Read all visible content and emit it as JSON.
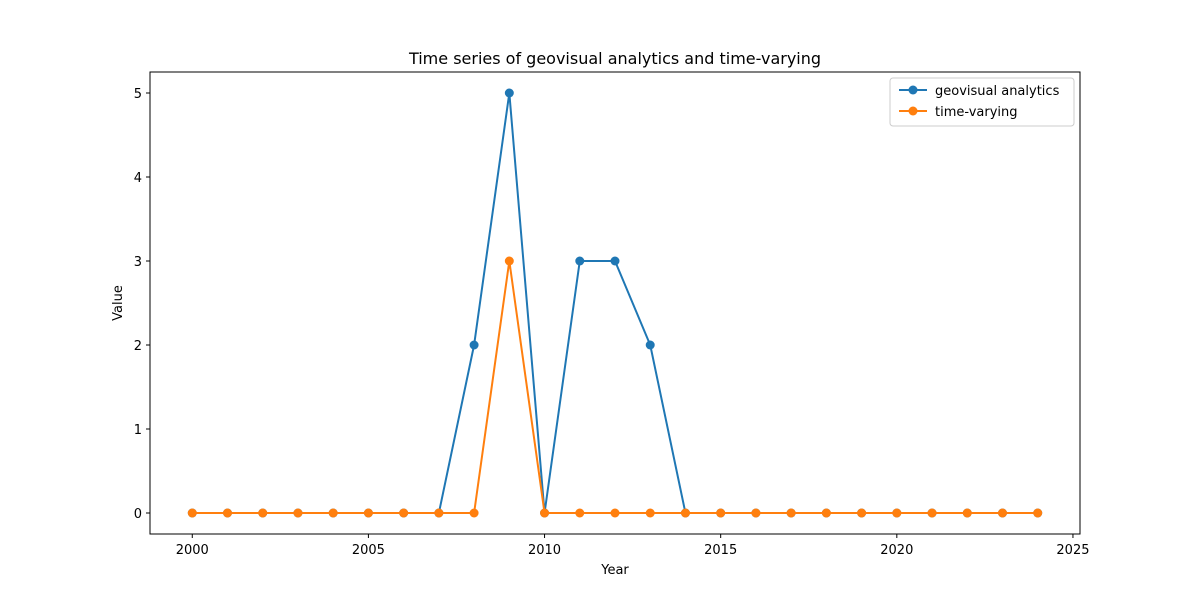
{
  "chart_data": {
    "type": "line",
    "title": "Time series of geovisual analytics and time-varying",
    "xlabel": "Year",
    "ylabel": "Value",
    "x": [
      2000,
      2001,
      2002,
      2003,
      2004,
      2005,
      2006,
      2007,
      2008,
      2009,
      2010,
      2011,
      2012,
      2013,
      2014,
      2015,
      2016,
      2017,
      2018,
      2019,
      2020,
      2021,
      2022,
      2023,
      2024
    ],
    "xlim": [
      1998.8,
      2025.2
    ],
    "ylim": [
      -0.25,
      5.25
    ],
    "xticks": [
      2000,
      2005,
      2010,
      2015,
      2020,
      2025
    ],
    "yticks": [
      0,
      1,
      2,
      3,
      4,
      5
    ],
    "grid": false,
    "legend_position": "top-right",
    "series": [
      {
        "name": "geovisual analytics",
        "color": "#1f77b4",
        "marker": "circle",
        "values": [
          0,
          0,
          0,
          0,
          0,
          0,
          0,
          0,
          2,
          5,
          0,
          3,
          3,
          2,
          0,
          0,
          0,
          0,
          0,
          0,
          0,
          0,
          0,
          0,
          0
        ]
      },
      {
        "name": "time-varying",
        "color": "#ff7f0e",
        "marker": "circle",
        "values": [
          0,
          0,
          0,
          0,
          0,
          0,
          0,
          0,
          0,
          3,
          0,
          0,
          0,
          0,
          0,
          0,
          0,
          0,
          0,
          0,
          0,
          0,
          0,
          0,
          0
        ]
      }
    ]
  }
}
